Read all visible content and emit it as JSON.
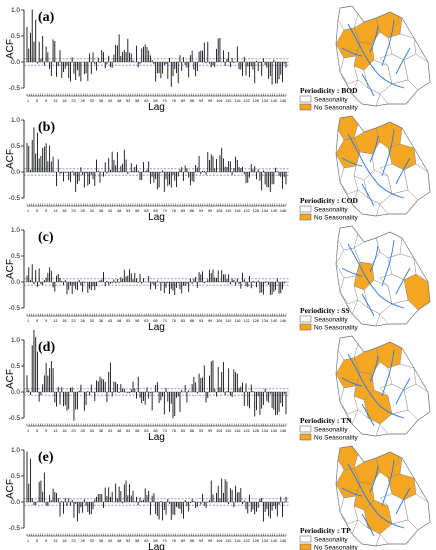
{
  "colors": {
    "acf_bar": "#111111",
    "conf_line": "#1f3a93",
    "zero_line": "#555555",
    "river": "#2b7bd9",
    "no_seasonality": "#f5a623",
    "seasonality": "#ffffff",
    "boundary": "#888888"
  },
  "chart_data": [
    {
      "type": "bar",
      "panel": "(a)",
      "ylabel": "ACF",
      "xlabel": "Lag",
      "ylim": [
        -0.5,
        1.0
      ],
      "yticks": [
        "-0.5",
        "0.0",
        "0.5",
        "1.0"
      ],
      "conf_band": [
        -0.06,
        0.06
      ],
      "x_tick_labels": [
        "1",
        "5",
        "9",
        "13",
        "18",
        "23",
        "28",
        "33",
        "38",
        "43",
        "48",
        "53",
        "58",
        "63",
        "68",
        "73",
        "78",
        "83",
        "88",
        "93",
        "99",
        "104",
        "110",
        "116",
        "122",
        "128",
        "134",
        "140",
        "146"
      ],
      "period": 56,
      "start_amplitude": 0.85,
      "env_start": [
        0.1,
        0.5
      ],
      "min_amplitude": 0.2,
      "map": {
        "legend_title": "Periodicity : BOD",
        "legend_items": [
          "Seasonality",
          "No Seasonality"
        ],
        "orange_regions": [
          1,
          2,
          3,
          4
        ]
      }
    },
    {
      "type": "bar",
      "panel": "(b)",
      "ylabel": "ACF",
      "xlabel": "Lag",
      "ylim": [
        -0.5,
        1.0
      ],
      "yticks": [
        "-0.5",
        "0.0",
        "0.5",
        "1.0"
      ],
      "conf_band": [
        -0.06,
        0.06
      ],
      "x_tick_labels": [
        "1",
        "5",
        "9",
        "13",
        "18",
        "23",
        "28",
        "33",
        "38",
        "43",
        "48",
        "53",
        "58",
        "63",
        "68",
        "73",
        "78",
        "83",
        "88",
        "93",
        "99",
        "104",
        "110",
        "116",
        "122",
        "128",
        "134",
        "140",
        "146"
      ],
      "period": 56,
      "start_amplitude": 0.75,
      "env_start": [
        0.1,
        0.45
      ],
      "min_amplitude": 0.15,
      "map": {
        "legend_title": "Periodicity : COD",
        "legend_items": [
          "Seasonality",
          "No Seasonality"
        ],
        "orange_regions": [
          0,
          1,
          2,
          3,
          5
        ]
      }
    },
    {
      "type": "bar",
      "panel": "(c)",
      "ylabel": "ACF",
      "xlabel": "Lag",
      "ylim": [
        -0.5,
        1.0
      ],
      "yticks": [
        "-0.5",
        "0.0",
        "0.5",
        "1.0"
      ],
      "conf_band": [
        -0.06,
        0.06
      ],
      "x_tick_labels": [
        "1",
        "5",
        "9",
        "13",
        "18",
        "23",
        "28",
        "33",
        "38",
        "43",
        "48",
        "53",
        "58",
        "63",
        "68",
        "73",
        "78",
        "83",
        "88",
        "93",
        "99",
        "104",
        "110",
        "116",
        "122",
        "128",
        "134",
        "140",
        "146"
      ],
      "period": 56,
      "start_amplitude": 0.45,
      "env_start": [
        0.08,
        0.2
      ],
      "min_amplitude": 0.1,
      "map": {
        "legend_title": "Periodicity : SS",
        "legend_items": [
          "Seasonality",
          "No Seasonality"
        ],
        "orange_regions": [
          4,
          6
        ]
      }
    },
    {
      "type": "bar",
      "panel": "(d)",
      "ylabel": "ACF",
      "xlabel": "Lag",
      "ylim": [
        -0.5,
        1.0
      ],
      "yticks": [
        "-0.5",
        "0.0",
        "0.5",
        "1.0"
      ],
      "conf_band": [
        -0.06,
        0.06
      ],
      "x_tick_labels": [
        "1",
        "5",
        "9",
        "13",
        "18",
        "23",
        "28",
        "33",
        "38",
        "43",
        "48",
        "53",
        "58",
        "63",
        "68",
        "73",
        "78",
        "83",
        "88",
        "93",
        "99",
        "104",
        "110",
        "116",
        "122",
        "128",
        "134",
        "140",
        "146"
      ],
      "period": 56,
      "start_amplitude": 0.95,
      "env_start": [
        0.1,
        0.7
      ],
      "min_amplitude": 0.25,
      "map": {
        "legend_title": "Periodicity : TN",
        "legend_items": [
          "Seasonality",
          "No Seasonality"
        ],
        "orange_regions": [
          1,
          2,
          3,
          4,
          7
        ]
      }
    },
    {
      "type": "bar",
      "panel": "(e)",
      "ylabel": "ACF",
      "xlabel": "Lag",
      "ylim": [
        -0.5,
        1.0
      ],
      "yticks": [
        "-0.5",
        "0.0",
        "0.5",
        "1.0"
      ],
      "conf_band": [
        -0.06,
        0.06
      ],
      "x_tick_labels": [
        "1",
        "5",
        "9",
        "13",
        "18",
        "23",
        "28",
        "33",
        "38",
        "43",
        "48",
        "53",
        "58",
        "63",
        "68",
        "73",
        "78",
        "83",
        "88",
        "93",
        "99",
        "104",
        "110",
        "116",
        "122",
        "128",
        "134",
        "140",
        "146"
      ],
      "period": 56,
      "start_amplitude": 0.7,
      "env_start": [
        0.55,
        0.2
      ],
      "min_amplitude": 0.15,
      "map": {
        "legend_title": "Periodicity : TP",
        "legend_items": [
          "Seasonality",
          "No Seasonality"
        ],
        "orange_regions": [
          0,
          1,
          2,
          3,
          4,
          5,
          7
        ]
      }
    }
  ]
}
